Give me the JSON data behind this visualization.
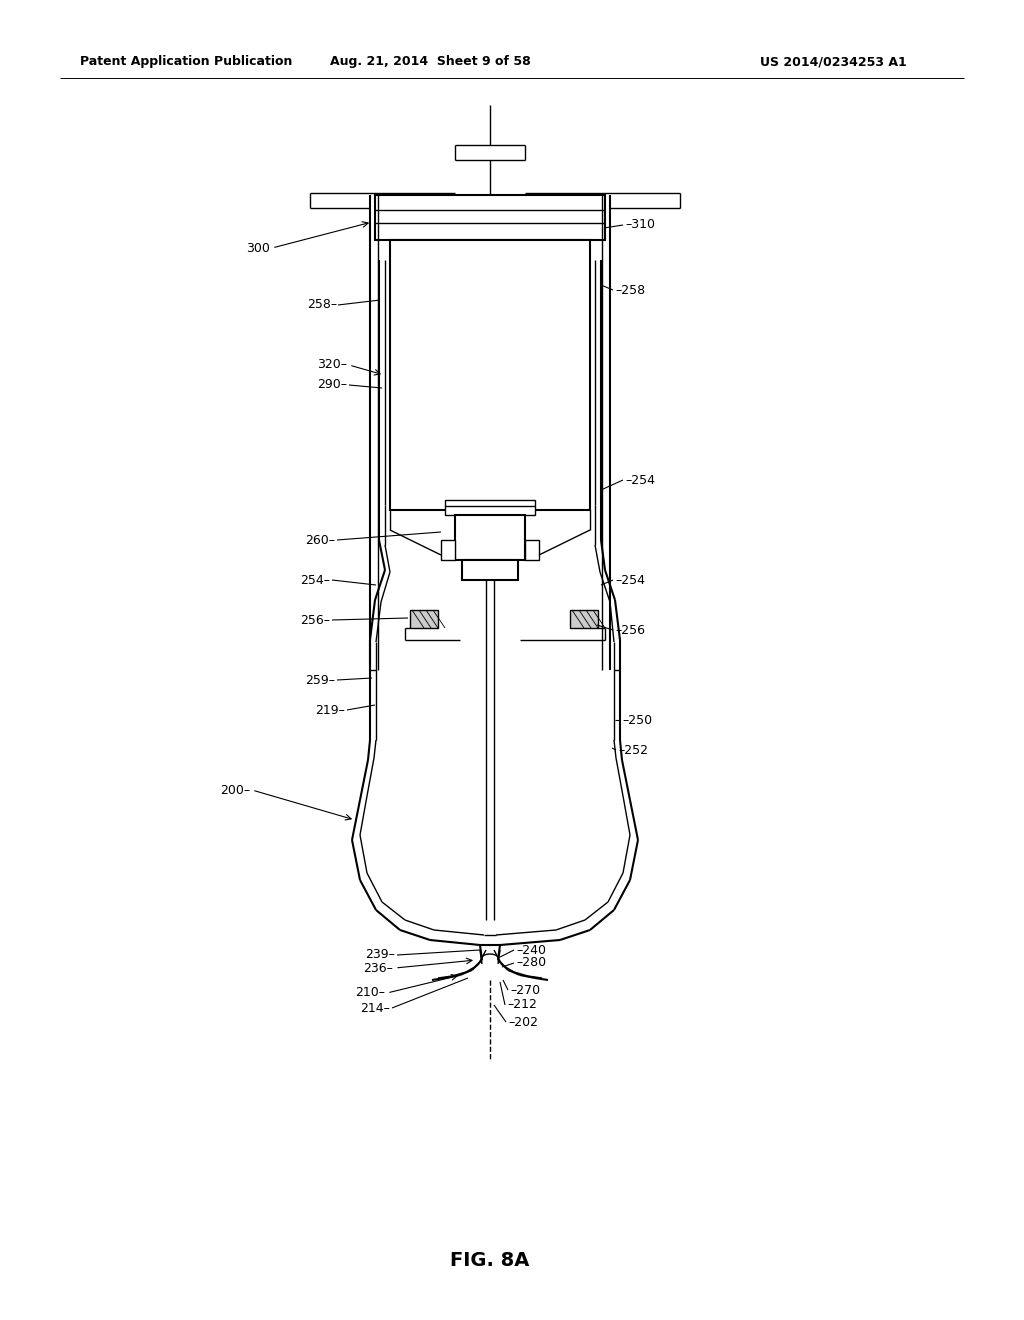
{
  "title_left": "Patent Application Publication",
  "title_mid": "Aug. 21, 2014  Sheet 9 of 58",
  "title_right": "US 2014/0234253 A1",
  "fig_label": "FIG. 8A",
  "bg_color": "#ffffff",
  "line_color": "#000000"
}
